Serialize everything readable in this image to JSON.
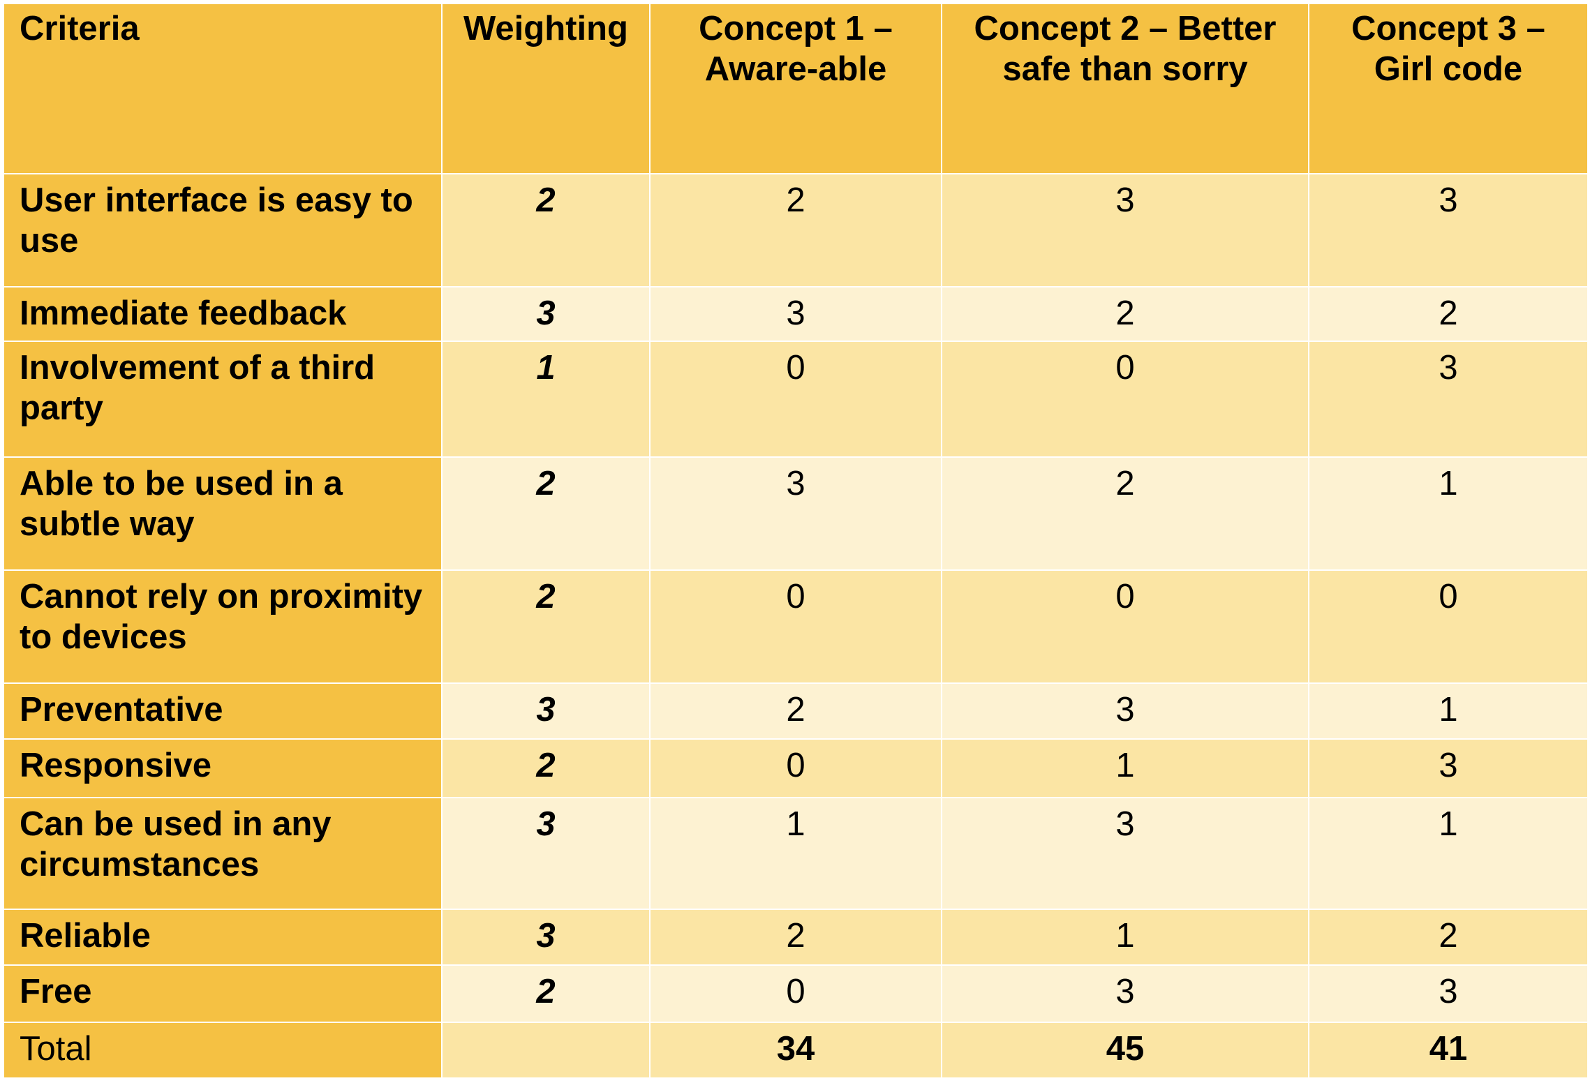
{
  "table": {
    "headers": [
      "Criteria",
      "Weighting",
      "Concept 1 – Aware-able",
      "Concept 2 – Better safe than sorry",
      "Concept 3 – Girl code"
    ],
    "rows": [
      {
        "criteria": "User interface is easy to use",
        "weighting": "2",
        "c1": "2",
        "c2": "3",
        "c3": "3"
      },
      {
        "criteria": "Immediate feedback",
        "weighting": "3",
        "c1": "3",
        "c2": "2",
        "c3": "2"
      },
      {
        "criteria": "Involvement of a third party",
        "weighting": "1",
        "c1": "0",
        "c2": "0",
        "c3": "3"
      },
      {
        "criteria": "Able to be used in a subtle way",
        "weighting": "2",
        "c1": "3",
        "c2": "2",
        "c3": "1"
      },
      {
        "criteria": "Cannot rely on proximity to devices",
        "weighting": "2",
        "c1": "0",
        "c2": "0",
        "c3": "0"
      },
      {
        "criteria": "Preventative",
        "weighting": "3",
        "c1": "2",
        "c2": "3",
        "c3": "1"
      },
      {
        "criteria": "Responsive",
        "weighting": "2",
        "c1": "0",
        "c2": "1",
        "c3": "3"
      },
      {
        "criteria": "Can be used in any circumstances",
        "weighting": "3",
        "c1": "1",
        "c2": "3",
        "c3": "1"
      },
      {
        "criteria": "Reliable",
        "weighting": "3",
        "c1": "2",
        "c2": "1",
        "c3": "2"
      },
      {
        "criteria": "Free",
        "weighting": "2",
        "c1": "0",
        "c2": "3",
        "c3": "3"
      }
    ],
    "total": {
      "label": "Total",
      "weighting": "",
      "c1": "34",
      "c2": "45",
      "c3": "41"
    }
  },
  "colors": {
    "header": "#f5c143",
    "row_dark": "#fbe5a4",
    "row_light": "#fdf2d2"
  }
}
